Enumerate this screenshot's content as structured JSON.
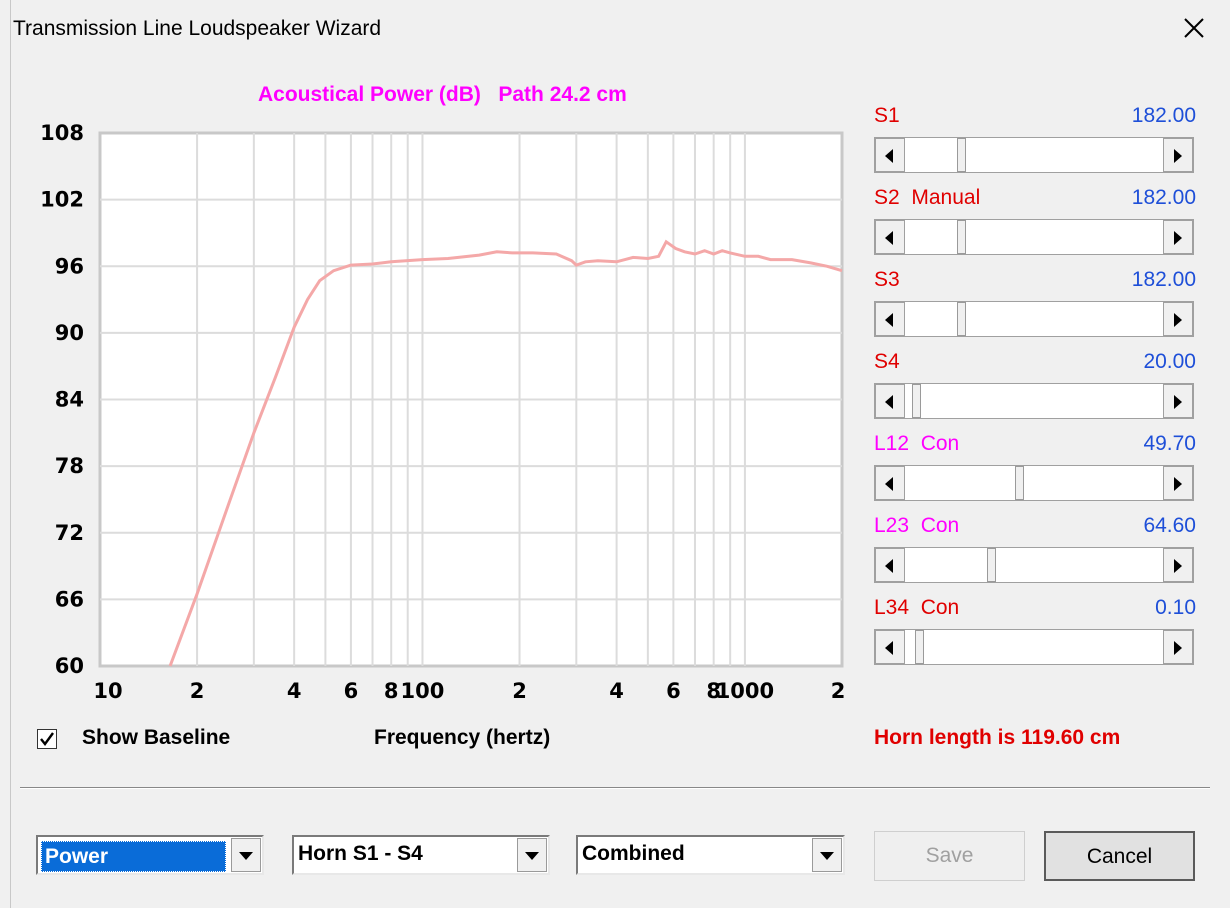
{
  "window": {
    "title": "Transmission Line Loudspeaker Wizard"
  },
  "chart_data": {
    "type": "line",
    "title": "Acoustical Power (dB)   Path 24.2 cm",
    "xlabel": "Frequency (hertz)",
    "ylabel": "",
    "x_scale": "log",
    "xlim": [
      10,
      2000
    ],
    "ylim": [
      60,
      108
    ],
    "y_ticks": [
      108,
      102,
      96,
      90,
      84,
      78,
      72,
      66,
      60
    ],
    "x_tick_labels": [
      "10",
      "2",
      "4",
      "6",
      "8",
      "100",
      "2",
      "4",
      "6",
      "8",
      "1000",
      "2"
    ],
    "x_tick_values": [
      10,
      20,
      40,
      60,
      80,
      100,
      200,
      400,
      600,
      800,
      1000,
      2000
    ],
    "grid": true,
    "line_color": "#f4a8a8",
    "series": [
      {
        "x": [
          16.5,
          20,
          25,
          30,
          35,
          40,
          44,
          48,
          53,
          60,
          70,
          80,
          100,
          120,
          150,
          170,
          190,
          220,
          260,
          290,
          300,
          320,
          350,
          400,
          450,
          500,
          540,
          570,
          590,
          610,
          650,
          700,
          750,
          800,
          850,
          900,
          1000,
          1100,
          1200,
          1400,
          1600,
          1800,
          2000
        ],
        "y": [
          60,
          66.5,
          74.5,
          81,
          86,
          90.5,
          93,
          94.7,
          95.6,
          96.1,
          96.2,
          96.4,
          96.6,
          96.7,
          97,
          97.3,
          97.2,
          97.2,
          97.1,
          96.5,
          96.1,
          96.4,
          96.5,
          96.4,
          96.8,
          96.7,
          96.9,
          98.2,
          97.9,
          97.6,
          97.3,
          97.1,
          97.4,
          97.1,
          97.4,
          97.2,
          96.9,
          96.9,
          96.6,
          96.6,
          96.3,
          96,
          95.6
        ]
      }
    ]
  },
  "sliders": [
    {
      "label": "S1",
      "label_color": "#e00000",
      "value": "182.00",
      "position": 0.21
    },
    {
      "label": "S2  Manual",
      "label_color": "#e00000",
      "value": "182.00",
      "position": 0.21
    },
    {
      "label": "S3",
      "label_color": "#e00000",
      "value": "182.00",
      "position": 0.21
    },
    {
      "label": "S4",
      "label_color": "#e00000",
      "value": "20.00",
      "position": 0.03
    },
    {
      "label": "L12  Con",
      "label_color": "#ff00ff",
      "value": "49.70",
      "position": 0.44
    },
    {
      "label": "L23  Con",
      "label_color": "#ff00ff",
      "value": "64.60",
      "position": 0.33
    },
    {
      "label": "L34  Con",
      "label_color": "#e00000",
      "value": "0.10",
      "position": 0.04
    }
  ],
  "show_baseline": {
    "label": "Show Baseline",
    "checked": true
  },
  "horn_length": "Horn length is 119.60 cm",
  "dropdowns": {
    "mode": "Power",
    "horn": "Horn S1 - S4",
    "combine": "Combined"
  },
  "buttons": {
    "save": "Save",
    "cancel": "Cancel"
  }
}
